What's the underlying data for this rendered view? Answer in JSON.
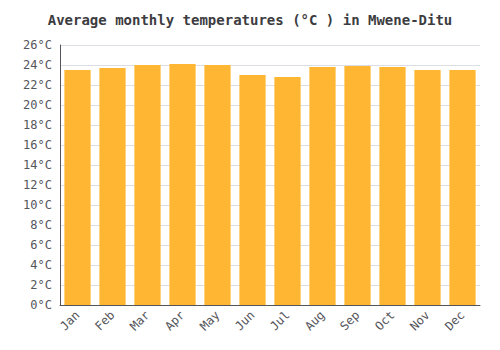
{
  "chart_data": {
    "type": "bar",
    "title": "Average monthly temperatures (°C ) in Mwene-Ditu",
    "categories": [
      "Jan",
      "Feb",
      "Mar",
      "Apr",
      "May",
      "Jun",
      "Jul",
      "Aug",
      "Sep",
      "Oct",
      "Nov",
      "Dec"
    ],
    "values": [
      23.5,
      23.7,
      24.0,
      24.1,
      24.0,
      23.0,
      22.8,
      23.8,
      23.9,
      23.8,
      23.5,
      23.5
    ],
    "color": "#FFB733",
    "ylim": [
      0,
      26
    ],
    "yticks": [
      {
        "value": 0,
        "label": "0°C"
      },
      {
        "value": 2,
        "label": "2°C"
      },
      {
        "value": 4,
        "label": "4°C"
      },
      {
        "value": 6,
        "label": "6°C"
      },
      {
        "value": 8,
        "label": "8°C"
      },
      {
        "value": 10,
        "label": "10°C"
      },
      {
        "value": 12,
        "label": "12°C"
      },
      {
        "value": 14,
        "label": "14°C"
      },
      {
        "value": 16,
        "label": "16°C"
      },
      {
        "value": 18,
        "label": "18°C"
      },
      {
        "value": 20,
        "label": "20°C"
      },
      {
        "value": 22,
        "label": "22°C"
      },
      {
        "value": 24,
        "label": "24°C"
      },
      {
        "value": 26,
        "label": "26°C"
      }
    ],
    "grid": true
  }
}
